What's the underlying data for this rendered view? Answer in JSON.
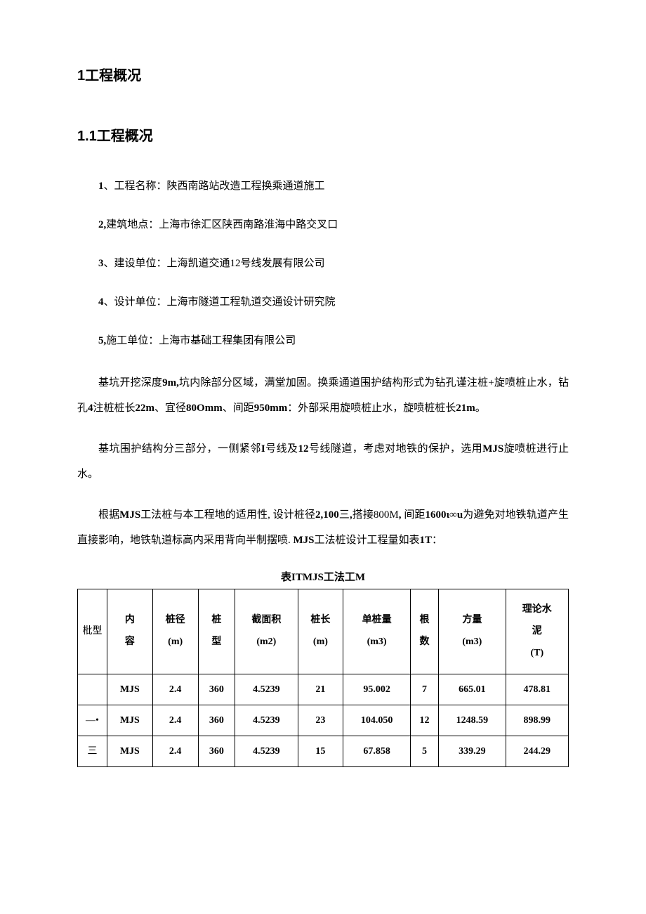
{
  "headings": {
    "h1": "1工程概况",
    "h2": "1.1工程概况"
  },
  "items": [
    {
      "num": "1",
      "sep": "、工程名称：",
      "text": "陕西南路站改造工程换乘通道施工"
    },
    {
      "num": "2,",
      "sep": "建筑地点：",
      "text": "上海市徐汇区陕西南路淮海中路交叉口"
    },
    {
      "num": "3",
      "sep": "、建设单位：",
      "text": "上海凯道交通12号线发展有限公司"
    },
    {
      "num": "4",
      "sep": "、设计单位：",
      "text": "上海市隧道工程轨道交通设计研究院"
    },
    {
      "num": "5,",
      "sep": "施工单位：",
      "text": "上海市基础工程集团有限公司"
    }
  ],
  "paragraphs": {
    "p1_a": "基坑开挖深度",
    "p1_b": "9m,",
    "p1_c": "坑内除部分区域，满堂加固。换乘通道围护结构形式为钻孔谨注桩+旋喷桩止水，钻孔",
    "p1_d": "4",
    "p1_e": "注桩桩长",
    "p1_f": "22m",
    "p1_g": "、宜径",
    "p1_h": "80Omm",
    "p1_i": "、间距",
    "p1_j": "950mm",
    "p1_k": "：外部采用旋喷桩止水，旋喷桩桩长",
    "p1_l": "21m",
    "p1_m": "。",
    "p2_a": "基坑围护结构分三部分，一侧紧邻",
    "p2_b": "I",
    "p2_c": "号线及",
    "p2_d": "12",
    "p2_e": "号线隧道，考虑对地铁的保护，选用",
    "p2_f": "MJS",
    "p2_g": "旋喷桩进行止水。",
    "p3_a": "根据",
    "p3_b": "MJS",
    "p3_c": "工法桩与本工程地的适用性, 设计桩径",
    "p3_d": "2,100",
    "p3_e": "三",
    "p3_f": ",",
    "p3_g": "搭接800M",
    "p3_h": ", ",
    "p3_i": "间距",
    "p3_j": "1600ι∞u",
    "p3_k": "为避免对地铁轨道产生直接影响，地铁轨道标高内采用背向半制摆喷. ",
    "p3_l": "MJS",
    "p3_m": "工法桩设计工程量如表",
    "p3_n": "1T",
    "p3_o": "："
  },
  "table": {
    "caption": "表ITMJS工法工M",
    "columns": [
      "枇型",
      "内容",
      "桩径(m)",
      "桩型",
      "截面积(m2)",
      "桩长(m)",
      "单桩量(m3)",
      "根数",
      "方量(m3)",
      "理论水泥(T)"
    ],
    "header_lines": {
      "c0": "枇型",
      "c1a": "内",
      "c1b": "容",
      "c2a": "桩径",
      "c2b": "(m)",
      "c3a": "桩",
      "c3b": "型",
      "c4a": "截面积",
      "c4b": "(m2)",
      "c5a": "桩长",
      "c5b": "(m)",
      "c6a": "单桩量",
      "c6b": "(m3)",
      "c7a": "根",
      "c7b": "数",
      "c8a": "方量",
      "c8b": "(m3)",
      "c9a": "理论水",
      "c9b": "泥",
      "c9c": "(T)"
    },
    "rows": [
      [
        "",
        "MJS",
        "2.4",
        "360",
        "4.5239",
        "21",
        "95.002",
        "7",
        "665.01",
        "478.81"
      ],
      [
        "—•",
        "MJS",
        "2.4",
        "360",
        "4.5239",
        "23",
        "104.050",
        "12",
        "1248.59",
        "898.99"
      ],
      [
        "三",
        "MJS",
        "2.4",
        "360",
        "4.5239",
        "15",
        "67.858",
        "5",
        "339.29",
        "244.29"
      ]
    ]
  },
  "style": {
    "background_color": "#ffffff",
    "text_color": "#000000",
    "border_color": "#000000",
    "body_fontsize": 15,
    "heading_fontsize": 20
  }
}
